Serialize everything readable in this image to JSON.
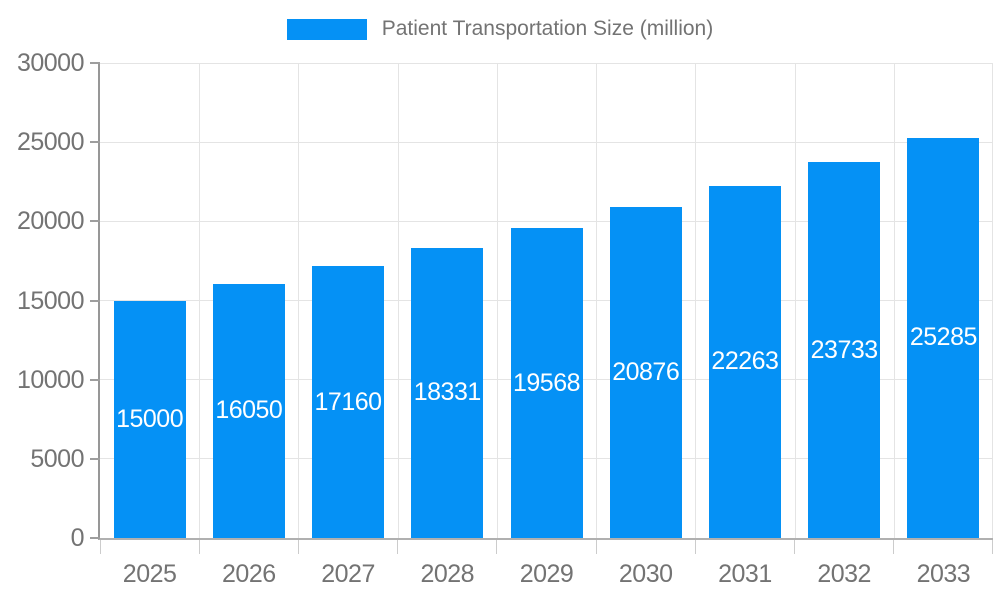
{
  "chart_data": {
    "type": "bar",
    "title": "Patient Transportation Size (million)",
    "categories": [
      "2025",
      "2026",
      "2027",
      "2028",
      "2029",
      "2030",
      "2031",
      "2032",
      "2033"
    ],
    "values": [
      15000,
      16050,
      17160,
      18331,
      19568,
      20876,
      22263,
      23733,
      25285
    ],
    "xlabel": "",
    "ylabel": "",
    "ylim": [
      0,
      30000
    ],
    "yticks": [
      0,
      5000,
      10000,
      15000,
      20000,
      25000,
      30000
    ],
    "grid": true,
    "legend_position": "top-center",
    "colors": {
      "bar": "#0591f5",
      "value_label": "#ffffff",
      "tick_label": "#737373",
      "grid_line": "#e4e4e4",
      "y_axis_line": "#979797",
      "x_axis_line": "#b0b0b0",
      "y_tick": "#9e9e9e",
      "x_tick": "#cccccc"
    }
  }
}
